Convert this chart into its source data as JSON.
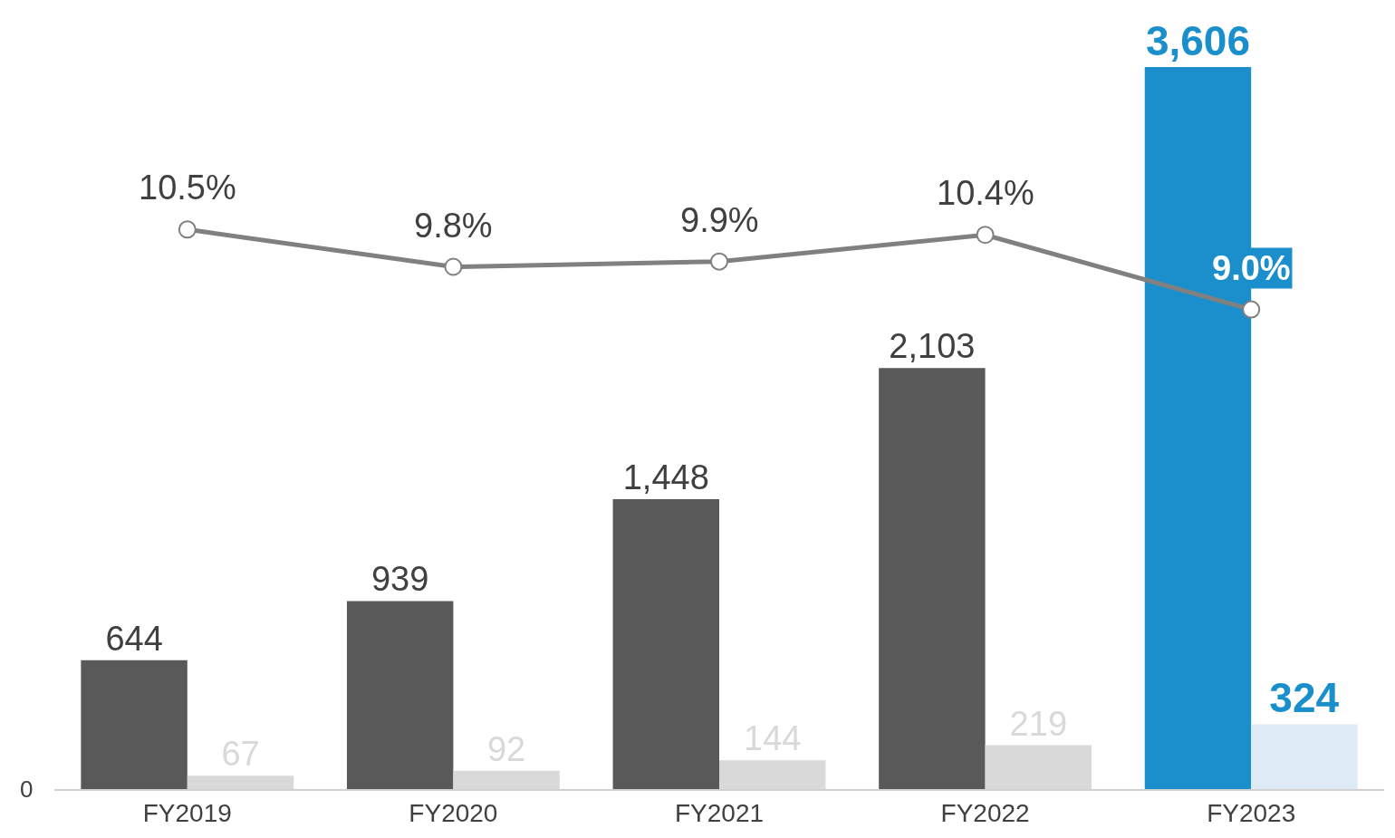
{
  "chart_data": {
    "type": "bar",
    "categories": [
      "FY2019",
      "FY2020",
      "FY2021",
      "FY2022",
      "FY2023"
    ],
    "annotations": [
      "0"
    ],
    "series": [
      {
        "color": "#595959",
        "colors": [
          "#595959",
          "#595959",
          "#595959",
          "#595959",
          "#1a8fcc"
        ],
        "values": [
          644,
          939,
          1448,
          2103,
          3606
        ],
        "value_labels": [
          "644",
          "939",
          "1,448",
          "2,103",
          "3,606"
        ]
      },
      {
        "color": "#d9d9d9",
        "colors": [
          "#d9d9d9",
          "#d9d9d9",
          "#d9d9d9",
          "#d9d9d9",
          "#deebf7"
        ],
        "values": [
          67,
          92,
          144,
          219,
          324
        ],
        "value_labels": [
          "67",
          "92",
          "144",
          "219",
          "324"
        ]
      },
      {
        "type": "line",
        "axis": "y2",
        "color": "#808080",
        "marker": "circle",
        "line_style": "solid",
        "values": [
          10.5,
          9.8,
          9.9,
          10.4,
          9.0
        ],
        "value_labels": [
          "10.5%",
          "9.8%",
          "9.9%",
          "10.4%",
          "9.0%"
        ]
      }
    ]
  }
}
